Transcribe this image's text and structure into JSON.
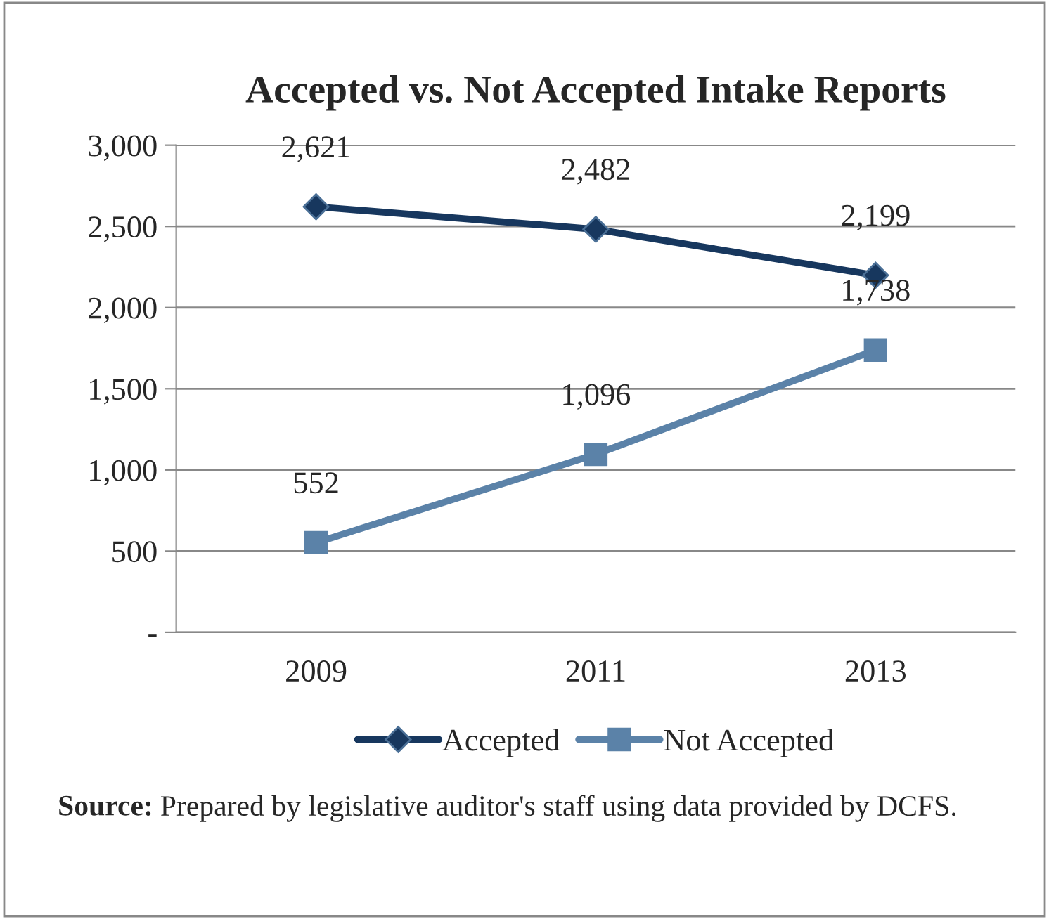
{
  "chart_data": {
    "type": "line",
    "title": "Accepted vs. Not Accepted Intake Reports",
    "categories": [
      "2009",
      "2011",
      "2013"
    ],
    "series": [
      {
        "name": "Accepted",
        "color": "#17375e",
        "marker": "diamond",
        "values": [
          2621,
          2482,
          2199
        ],
        "value_labels": [
          "2,621",
          "2,482",
          "2,199"
        ]
      },
      {
        "name": "Not Accepted",
        "color": "#5b82a8",
        "marker": "square",
        "values": [
          552,
          1096,
          1738
        ],
        "value_labels": [
          "552",
          "1,096",
          "1,738"
        ]
      }
    ],
    "ylim": [
      0,
      3000
    ],
    "yticks": [
      {
        "value": 0,
        "label": "-"
      },
      {
        "value": 500,
        "label": "500"
      },
      {
        "value": 1000,
        "label": "1,000"
      },
      {
        "value": 1500,
        "label": "1,500"
      },
      {
        "value": 2000,
        "label": "2,000"
      },
      {
        "value": 2500,
        "label": "2,500"
      },
      {
        "value": 3000,
        "label": "3,000"
      }
    ],
    "grid": "y",
    "legend": "bottom",
    "line_style": "solid",
    "annotations": [
      "Source: Prepared by legislative auditor's staff using data provided by DCFS."
    ]
  }
}
